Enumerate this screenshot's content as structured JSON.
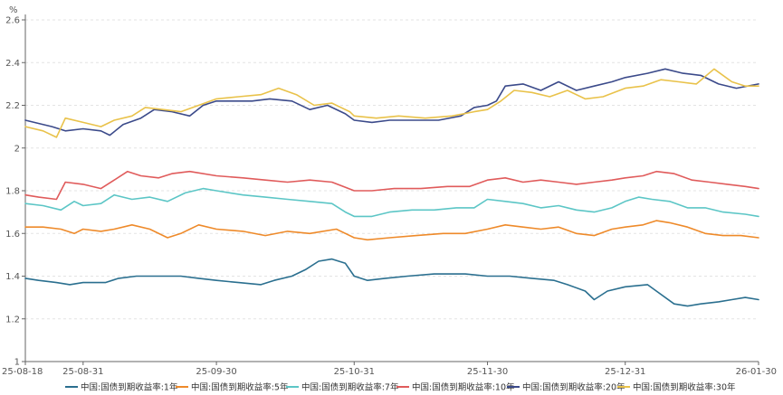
{
  "chart_data": {
    "type": "line",
    "unit": "%",
    "ylim": [
      1,
      2.6
    ],
    "y_ticks": [
      "1",
      "1.2",
      "1.4",
      "1.6",
      "1.8",
      "2",
      "2.2",
      "2.4",
      "2.6"
    ],
    "x_start": "2025-08-18",
    "x_end": "2026-01-30",
    "x_ticks": [
      {
        "date": "2025-08-18",
        "label": "25-08-18"
      },
      {
        "date": "2025-08-31",
        "label": "25-08-31"
      },
      {
        "date": "2025-09-30",
        "label": "25-09-30"
      },
      {
        "date": "2025-10-31",
        "label": "25-10-31"
      },
      {
        "date": "2025-11-30",
        "label": "25-11-30"
      },
      {
        "date": "2025-12-31",
        "label": "25-12-31"
      },
      {
        "date": "2026-01-30",
        "label": "26-01-30"
      }
    ],
    "grid": "horizontal-dashed",
    "legend_position": "bottom",
    "series": [
      {
        "name": "中国:国债到期收益率:1年",
        "color": "#2a6f8f",
        "points": [
          [
            "2025-08-18",
            1.39
          ],
          [
            "2025-08-21",
            1.38
          ],
          [
            "2025-08-25",
            1.37
          ],
          [
            "2025-08-28",
            1.36
          ],
          [
            "2025-08-31",
            1.37
          ],
          [
            "2025-09-05",
            1.37
          ],
          [
            "2025-09-08",
            1.39
          ],
          [
            "2025-09-12",
            1.4
          ],
          [
            "2025-09-18",
            1.4
          ],
          [
            "2025-09-22",
            1.4
          ],
          [
            "2025-09-26",
            1.39
          ],
          [
            "2025-09-30",
            1.38
          ],
          [
            "2025-10-05",
            1.37
          ],
          [
            "2025-10-10",
            1.36
          ],
          [
            "2025-10-13",
            1.38
          ],
          [
            "2025-10-17",
            1.4
          ],
          [
            "2025-10-20",
            1.43
          ],
          [
            "2025-10-23",
            1.47
          ],
          [
            "2025-10-26",
            1.48
          ],
          [
            "2025-10-29",
            1.46
          ],
          [
            "2025-10-31",
            1.4
          ],
          [
            "2025-11-03",
            1.38
          ],
          [
            "2025-11-07",
            1.39
          ],
          [
            "2025-11-12",
            1.4
          ],
          [
            "2025-11-18",
            1.41
          ],
          [
            "2025-11-25",
            1.41
          ],
          [
            "2025-11-30",
            1.4
          ],
          [
            "2025-12-05",
            1.4
          ],
          [
            "2025-12-10",
            1.39
          ],
          [
            "2025-12-15",
            1.38
          ],
          [
            "2025-12-18",
            1.36
          ],
          [
            "2025-12-22",
            1.33
          ],
          [
            "2025-12-24",
            1.29
          ],
          [
            "2025-12-27",
            1.33
          ],
          [
            "2025-12-31",
            1.35
          ],
          [
            "2026-01-05",
            1.36
          ],
          [
            "2026-01-07",
            1.33
          ],
          [
            "2026-01-11",
            1.27
          ],
          [
            "2026-01-14",
            1.26
          ],
          [
            "2026-01-17",
            1.27
          ],
          [
            "2026-01-21",
            1.28
          ],
          [
            "2026-01-24",
            1.29
          ],
          [
            "2026-01-27",
            1.3
          ],
          [
            "2026-01-30",
            1.29
          ]
        ]
      },
      {
        "name": "中国:国债到期收益率:5年",
        "color": "#ee8a2a",
        "points": [
          [
            "2025-08-18",
            1.63
          ],
          [
            "2025-08-22",
            1.63
          ],
          [
            "2025-08-26",
            1.62
          ],
          [
            "2025-08-29",
            1.6
          ],
          [
            "2025-08-31",
            1.62
          ],
          [
            "2025-09-04",
            1.61
          ],
          [
            "2025-09-07",
            1.62
          ],
          [
            "2025-09-11",
            1.64
          ],
          [
            "2025-09-15",
            1.62
          ],
          [
            "2025-09-19",
            1.58
          ],
          [
            "2025-09-22",
            1.6
          ],
          [
            "2025-09-26",
            1.64
          ],
          [
            "2025-09-30",
            1.62
          ],
          [
            "2025-10-06",
            1.61
          ],
          [
            "2025-10-11",
            1.59
          ],
          [
            "2025-10-16",
            1.61
          ],
          [
            "2025-10-21",
            1.6
          ],
          [
            "2025-10-27",
            1.62
          ],
          [
            "2025-10-31",
            1.58
          ],
          [
            "2025-11-03",
            1.57
          ],
          [
            "2025-11-08",
            1.58
          ],
          [
            "2025-11-14",
            1.59
          ],
          [
            "2025-11-20",
            1.6
          ],
          [
            "2025-11-25",
            1.6
          ],
          [
            "2025-11-30",
            1.62
          ],
          [
            "2025-12-04",
            1.64
          ],
          [
            "2025-12-08",
            1.63
          ],
          [
            "2025-12-12",
            1.62
          ],
          [
            "2025-12-16",
            1.63
          ],
          [
            "2025-12-20",
            1.6
          ],
          [
            "2025-12-24",
            1.59
          ],
          [
            "2025-12-28",
            1.62
          ],
          [
            "2025-12-31",
            1.63
          ],
          [
            "2026-01-04",
            1.64
          ],
          [
            "2026-01-07",
            1.66
          ],
          [
            "2026-01-10",
            1.65
          ],
          [
            "2026-01-14",
            1.63
          ],
          [
            "2026-01-18",
            1.6
          ],
          [
            "2026-01-22",
            1.59
          ],
          [
            "2026-01-26",
            1.59
          ],
          [
            "2026-01-30",
            1.58
          ]
        ]
      },
      {
        "name": "中国:国债到期收益率:7年",
        "color": "#5cc6c6",
        "points": [
          [
            "2025-08-18",
            1.74
          ],
          [
            "2025-08-22",
            1.73
          ],
          [
            "2025-08-26",
            1.71
          ],
          [
            "2025-08-29",
            1.75
          ],
          [
            "2025-08-31",
            1.73
          ],
          [
            "2025-09-04",
            1.74
          ],
          [
            "2025-09-07",
            1.78
          ],
          [
            "2025-09-11",
            1.76
          ],
          [
            "2025-09-15",
            1.77
          ],
          [
            "2025-09-19",
            1.75
          ],
          [
            "2025-09-23",
            1.79
          ],
          [
            "2025-09-27",
            1.81
          ],
          [
            "2025-09-30",
            1.8
          ],
          [
            "2025-10-06",
            1.78
          ],
          [
            "2025-10-11",
            1.77
          ],
          [
            "2025-10-16",
            1.76
          ],
          [
            "2025-10-21",
            1.75
          ],
          [
            "2025-10-26",
            1.74
          ],
          [
            "2025-10-29",
            1.7
          ],
          [
            "2025-10-31",
            1.68
          ],
          [
            "2025-11-04",
            1.68
          ],
          [
            "2025-11-08",
            1.7
          ],
          [
            "2025-11-13",
            1.71
          ],
          [
            "2025-11-18",
            1.71
          ],
          [
            "2025-11-23",
            1.72
          ],
          [
            "2025-11-27",
            1.72
          ],
          [
            "2025-11-30",
            1.76
          ],
          [
            "2025-12-04",
            1.75
          ],
          [
            "2025-12-08",
            1.74
          ],
          [
            "2025-12-12",
            1.72
          ],
          [
            "2025-12-16",
            1.73
          ],
          [
            "2025-12-20",
            1.71
          ],
          [
            "2025-12-24",
            1.7
          ],
          [
            "2025-12-28",
            1.72
          ],
          [
            "2025-12-31",
            1.75
          ],
          [
            "2026-01-03",
            1.77
          ],
          [
            "2026-01-06",
            1.76
          ],
          [
            "2026-01-10",
            1.75
          ],
          [
            "2026-01-14",
            1.72
          ],
          [
            "2026-01-18",
            1.72
          ],
          [
            "2026-01-22",
            1.7
          ],
          [
            "2026-01-27",
            1.69
          ],
          [
            "2026-01-30",
            1.68
          ]
        ]
      },
      {
        "name": "中国:国债到期收益率:10年",
        "color": "#e05b5b",
        "points": [
          [
            "2025-08-18",
            1.78
          ],
          [
            "2025-08-21",
            1.77
          ],
          [
            "2025-08-25",
            1.76
          ],
          [
            "2025-08-27",
            1.84
          ],
          [
            "2025-08-31",
            1.83
          ],
          [
            "2025-09-04",
            1.81
          ],
          [
            "2025-09-07",
            1.85
          ],
          [
            "2025-09-10",
            1.89
          ],
          [
            "2025-09-13",
            1.87
          ],
          [
            "2025-09-17",
            1.86
          ],
          [
            "2025-09-20",
            1.88
          ],
          [
            "2025-09-24",
            1.89
          ],
          [
            "2025-09-30",
            1.87
          ],
          [
            "2025-10-06",
            1.86
          ],
          [
            "2025-10-11",
            1.85
          ],
          [
            "2025-10-16",
            1.84
          ],
          [
            "2025-10-21",
            1.85
          ],
          [
            "2025-10-26",
            1.84
          ],
          [
            "2025-10-31",
            1.8
          ],
          [
            "2025-11-04",
            1.8
          ],
          [
            "2025-11-09",
            1.81
          ],
          [
            "2025-11-15",
            1.81
          ],
          [
            "2025-11-21",
            1.82
          ],
          [
            "2025-11-26",
            1.82
          ],
          [
            "2025-11-30",
            1.85
          ],
          [
            "2025-12-04",
            1.86
          ],
          [
            "2025-12-08",
            1.84
          ],
          [
            "2025-12-12",
            1.85
          ],
          [
            "2025-12-16",
            1.84
          ],
          [
            "2025-12-20",
            1.83
          ],
          [
            "2025-12-24",
            1.84
          ],
          [
            "2025-12-28",
            1.85
          ],
          [
            "2025-12-31",
            1.86
          ],
          [
            "2026-01-04",
            1.87
          ],
          [
            "2026-01-07",
            1.89
          ],
          [
            "2026-01-11",
            1.88
          ],
          [
            "2026-01-15",
            1.85
          ],
          [
            "2026-01-19",
            1.84
          ],
          [
            "2026-01-23",
            1.83
          ],
          [
            "2026-01-27",
            1.82
          ],
          [
            "2026-01-30",
            1.81
          ]
        ]
      },
      {
        "name": "中国:国债到期收益率:20年",
        "color": "#3b4a8a",
        "points": [
          [
            "2025-08-18",
            2.13
          ],
          [
            "2025-08-20",
            2.12
          ],
          [
            "2025-08-24",
            2.1
          ],
          [
            "2025-08-27",
            2.08
          ],
          [
            "2025-08-31",
            2.09
          ],
          [
            "2025-09-04",
            2.08
          ],
          [
            "2025-09-06",
            2.06
          ],
          [
            "2025-09-09",
            2.11
          ],
          [
            "2025-09-13",
            2.14
          ],
          [
            "2025-09-16",
            2.18
          ],
          [
            "2025-09-20",
            2.17
          ],
          [
            "2025-09-24",
            2.15
          ],
          [
            "2025-09-27",
            2.2
          ],
          [
            "2025-09-30",
            2.22
          ],
          [
            "2025-10-04",
            2.22
          ],
          [
            "2025-10-08",
            2.22
          ],
          [
            "2025-10-12",
            2.23
          ],
          [
            "2025-10-17",
            2.22
          ],
          [
            "2025-10-21",
            2.18
          ],
          [
            "2025-10-25",
            2.2
          ],
          [
            "2025-10-29",
            2.16
          ],
          [
            "2025-10-31",
            2.13
          ],
          [
            "2025-11-04",
            2.12
          ],
          [
            "2025-11-08",
            2.13
          ],
          [
            "2025-11-13",
            2.13
          ],
          [
            "2025-11-19",
            2.13
          ],
          [
            "2025-11-24",
            2.15
          ],
          [
            "2025-11-27",
            2.19
          ],
          [
            "2025-11-30",
            2.2
          ],
          [
            "2025-12-02",
            2.22
          ],
          [
            "2025-12-04",
            2.29
          ],
          [
            "2025-12-08",
            2.3
          ],
          [
            "2025-12-12",
            2.27
          ],
          [
            "2025-12-16",
            2.31
          ],
          [
            "2025-12-20",
            2.27
          ],
          [
            "2025-12-24",
            2.29
          ],
          [
            "2025-12-28",
            2.31
          ],
          [
            "2025-12-31",
            2.33
          ],
          [
            "2026-01-05",
            2.35
          ],
          [
            "2026-01-09",
            2.37
          ],
          [
            "2026-01-13",
            2.35
          ],
          [
            "2026-01-17",
            2.34
          ],
          [
            "2026-01-21",
            2.3
          ],
          [
            "2026-01-25",
            2.28
          ],
          [
            "2026-01-30",
            2.3
          ]
        ]
      },
      {
        "name": "中国:国债到期收益率:30年",
        "color": "#e9c24a",
        "points": [
          [
            "2025-08-18",
            2.1
          ],
          [
            "2025-08-22",
            2.08
          ],
          [
            "2025-08-25",
            2.05
          ],
          [
            "2025-08-27",
            2.14
          ],
          [
            "2025-08-31",
            2.12
          ],
          [
            "2025-09-04",
            2.1
          ],
          [
            "2025-09-07",
            2.13
          ],
          [
            "2025-09-11",
            2.15
          ],
          [
            "2025-09-14",
            2.19
          ],
          [
            "2025-09-18",
            2.18
          ],
          [
            "2025-09-22",
            2.17
          ],
          [
            "2025-09-26",
            2.2
          ],
          [
            "2025-09-30",
            2.23
          ],
          [
            "2025-10-05",
            2.24
          ],
          [
            "2025-10-10",
            2.25
          ],
          [
            "2025-10-14",
            2.28
          ],
          [
            "2025-10-18",
            2.25
          ],
          [
            "2025-10-22",
            2.2
          ],
          [
            "2025-10-26",
            2.21
          ],
          [
            "2025-10-30",
            2.17
          ],
          [
            "2025-10-31",
            2.15
          ],
          [
            "2025-11-05",
            2.14
          ],
          [
            "2025-11-10",
            2.15
          ],
          [
            "2025-11-16",
            2.14
          ],
          [
            "2025-11-22",
            2.15
          ],
          [
            "2025-11-27",
            2.17
          ],
          [
            "2025-11-30",
            2.18
          ],
          [
            "2025-12-03",
            2.22
          ],
          [
            "2025-12-06",
            2.27
          ],
          [
            "2025-12-10",
            2.26
          ],
          [
            "2025-12-14",
            2.24
          ],
          [
            "2025-12-18",
            2.27
          ],
          [
            "2025-12-22",
            2.23
          ],
          [
            "2025-12-26",
            2.24
          ],
          [
            "2025-12-31",
            2.28
          ],
          [
            "2026-01-04",
            2.29
          ],
          [
            "2026-01-08",
            2.32
          ],
          [
            "2026-01-12",
            2.31
          ],
          [
            "2026-01-16",
            2.3
          ],
          [
            "2026-01-20",
            2.37
          ],
          [
            "2026-01-24",
            2.31
          ],
          [
            "2026-01-27",
            2.29
          ],
          [
            "2026-01-30",
            2.29
          ]
        ]
      }
    ]
  }
}
